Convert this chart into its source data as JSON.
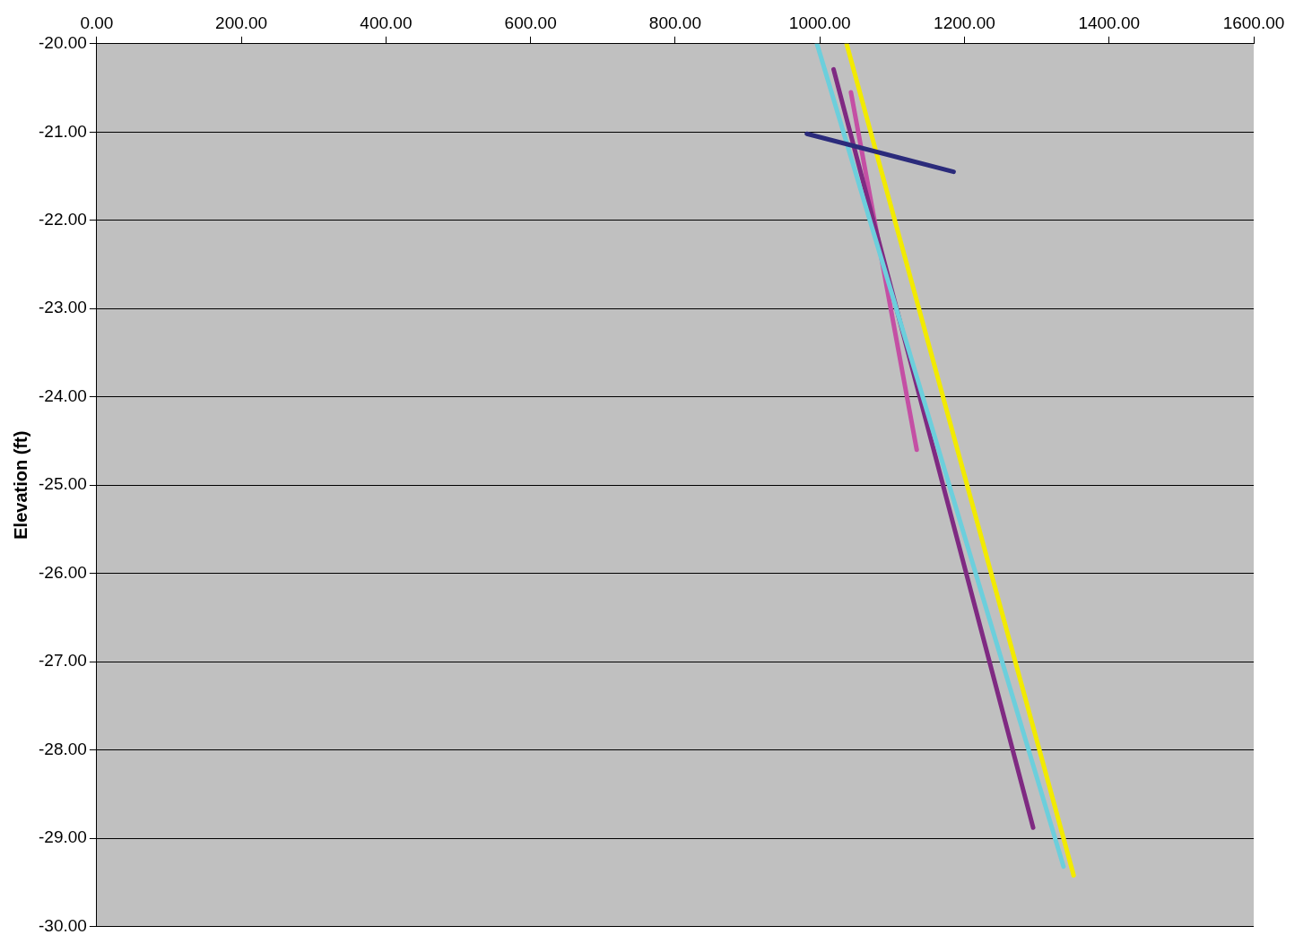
{
  "chart_data": {
    "type": "line",
    "ylabel": "Elevation (ft)",
    "xlim": [
      0,
      1600
    ],
    "xticks": [
      {
        "value": 0,
        "label": "0.00"
      },
      {
        "value": 200,
        "label": "200.00"
      },
      {
        "value": 400,
        "label": "400.00"
      },
      {
        "value": 600,
        "label": "600.00"
      },
      {
        "value": 800,
        "label": "800.00"
      },
      {
        "value": 1000,
        "label": "1000.00"
      },
      {
        "value": 1200,
        "label": "1200.00"
      },
      {
        "value": 1400,
        "label": "1400.00"
      },
      {
        "value": 1600,
        "label": "1600.00"
      }
    ],
    "ylim": [
      -30,
      -20
    ],
    "yticks": [
      {
        "value": -30,
        "label": "-30.00"
      },
      {
        "value": -29,
        "label": "-29.00"
      },
      {
        "value": -28,
        "label": "-28.00"
      },
      {
        "value": -27,
        "label": "-27.00"
      },
      {
        "value": -26,
        "label": "-26.00"
      },
      {
        "value": -25,
        "label": "-25.00"
      },
      {
        "value": -24,
        "label": "-24.00"
      },
      {
        "value": -23,
        "label": "-23.00"
      },
      {
        "value": -22,
        "label": "-22.00"
      },
      {
        "value": -21,
        "label": "-21.00"
      },
      {
        "value": -20,
        "label": "-20.00"
      }
    ],
    "grid": "y",
    "legend": false,
    "marker": "none",
    "line_style": "solid",
    "series": [
      {
        "color": "#2b2b7b",
        "x": [
          982,
          1185
        ],
        "values": [
          -21.02,
          -21.45
        ]
      },
      {
        "color": "#6ccfdc",
        "x": [
          996,
          1337
        ],
        "values": [
          -20,
          -29.32
        ]
      },
      {
        "color": "#f2ea00",
        "x": [
          1037,
          1351
        ],
        "values": [
          -20,
          -29.42
        ]
      },
      {
        "color": "#7f2a82",
        "x": [
          1019,
          1295
        ],
        "values": [
          -20.29,
          -28.88
        ]
      },
      {
        "color": "#c44fa4",
        "x": [
          1043,
          1134
        ],
        "values": [
          -20.55,
          -24.6
        ]
      }
    ]
  }
}
